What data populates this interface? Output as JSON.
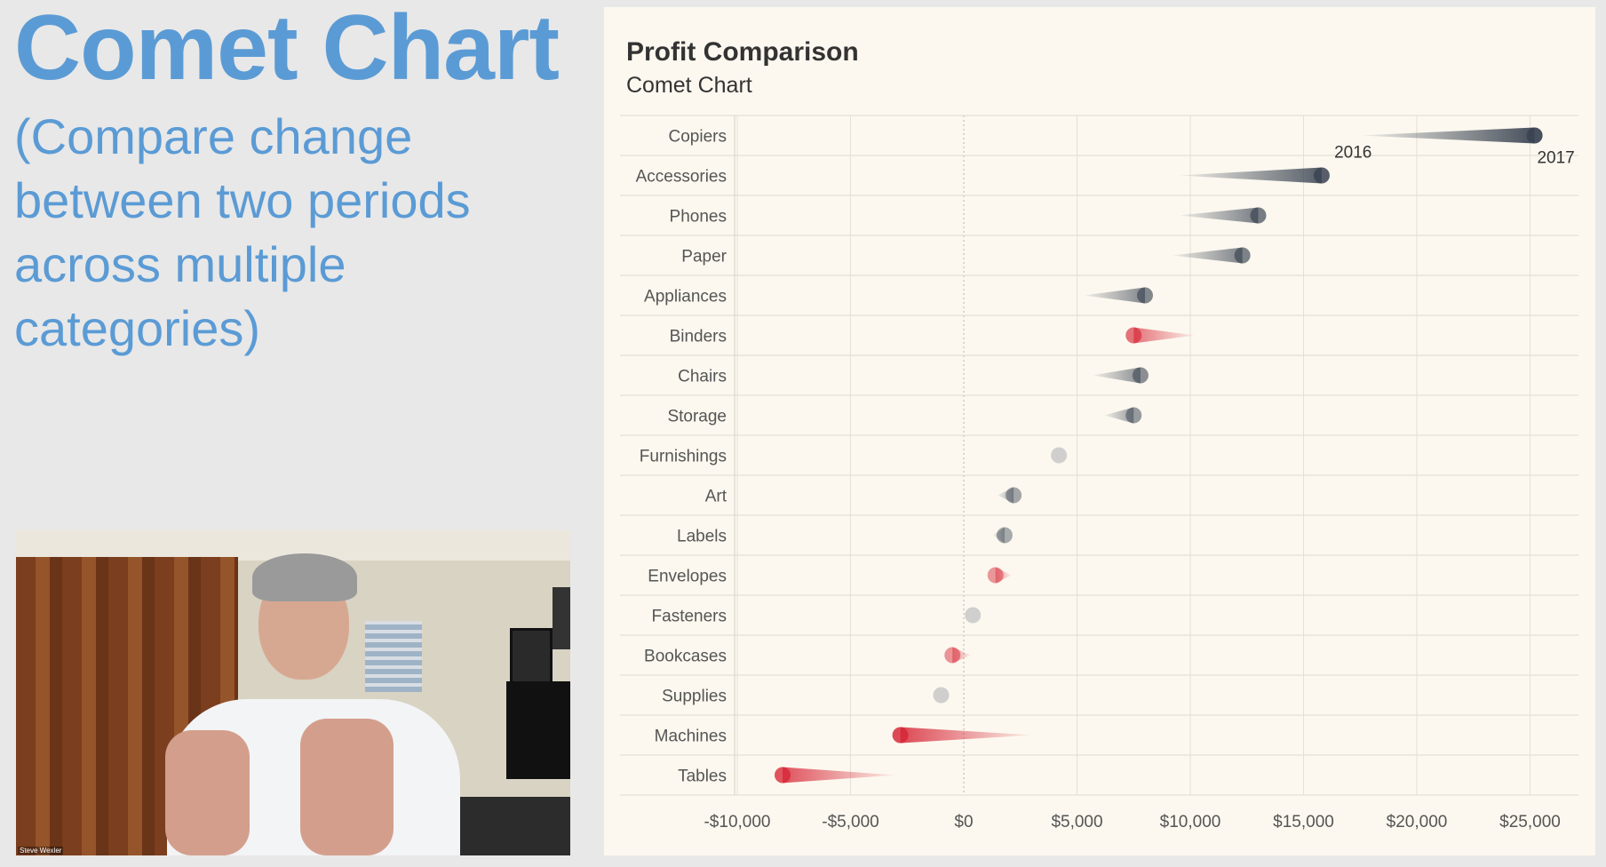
{
  "slide": {
    "title": "Comet Chart",
    "subtitle": "(Compare change between two periods across multiple categories)"
  },
  "video": {
    "caption": "Steve Wexler"
  },
  "chart_data": {
    "type": "comet",
    "title": "Profit Comparison",
    "subtitle": "Comet Chart",
    "xlabel": "",
    "ylabel": "",
    "xlim": [
      -11000,
      27000
    ],
    "x_ticks": [
      -10000,
      -5000,
      0,
      5000,
      10000,
      15000,
      20000,
      25000
    ],
    "x_tick_labels": [
      "-$10,000",
      "-$5,000",
      "$0",
      "$5,000",
      "$10,000",
      "$15,000",
      "$20,000",
      "$25,000"
    ],
    "period_labels": {
      "start": "2016",
      "end": "2017"
    },
    "categories": [
      "Copiers",
      "Accessories",
      "Phones",
      "Paper",
      "Appliances",
      "Binders",
      "Chairs",
      "Storage",
      "Furnishings",
      "Art",
      "Labels",
      "Envelopes",
      "Fasteners",
      "Bookcases",
      "Supplies",
      "Machines",
      "Tables"
    ],
    "series": [
      {
        "name": "2016",
        "values": [
          17500,
          9500,
          9500,
          9200,
          5300,
          10200,
          5700,
          6200,
          4200,
          1500,
          1300,
          2100,
          400,
          300,
          -1000,
          3000,
          -3000
        ]
      },
      {
        "name": "2017",
        "values": [
          25200,
          15800,
          13000,
          12300,
          8000,
          7500,
          7800,
          7500,
          4200,
          2200,
          1800,
          1400,
          400,
          -500,
          -1000,
          -2800,
          -8000
        ]
      }
    ],
    "colors": {
      "increase": "#3a4452",
      "decrease": "#d62535",
      "neutral": "#c8c8c8",
      "grid": "#e4e0d6",
      "zero_line": "#b5b5b5",
      "label": "#555555"
    }
  }
}
